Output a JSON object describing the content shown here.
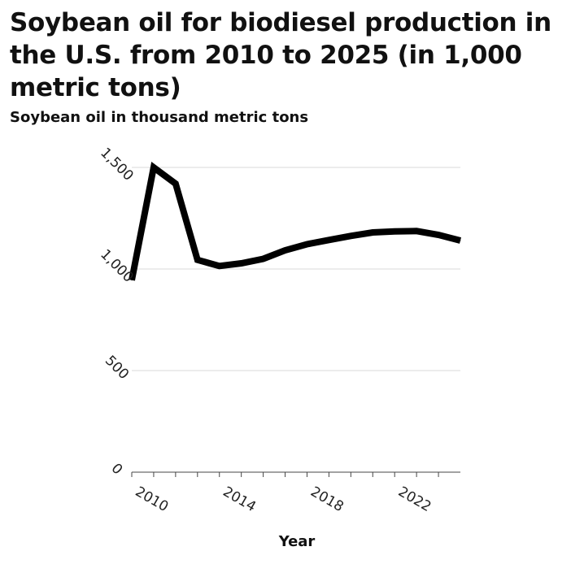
{
  "chart_data": {
    "type": "line",
    "title": "Soybean oil for biodiesel production in the U.S. from 2010 to 2025 (in 1,000 metric tons)",
    "ylabel": "Soybean oil in thousand metric tons",
    "xlabel": "Year",
    "x": [
      2010,
      2011,
      2012,
      2013,
      2014,
      2015,
      2016,
      2017,
      2018,
      2019,
      2020,
      2021,
      2022,
      2023,
      2024,
      2025
    ],
    "series": [
      {
        "values": [
          945,
          1500,
          1420,
          1045,
          1015,
          1028,
          1050,
          1092,
          1122,
          1143,
          1163,
          1180,
          1185,
          1187,
          1168,
          1140
        ]
      }
    ],
    "xlim": [
      2010,
      2025
    ],
    "ylim": [
      0,
      1500
    ],
    "xticks": [
      2010,
      2014,
      2018,
      2022
    ],
    "xtick_labels": [
      "2010",
      "2014",
      "2018",
      "2022"
    ],
    "yticks": [
      0,
      500,
      1000,
      1500
    ],
    "ytick_labels": [
      "0",
      "500",
      "1,000",
      "1,500"
    ],
    "grid": "horizontal",
    "line_color": "#000000",
    "grid_color": "#d9d9d9"
  }
}
